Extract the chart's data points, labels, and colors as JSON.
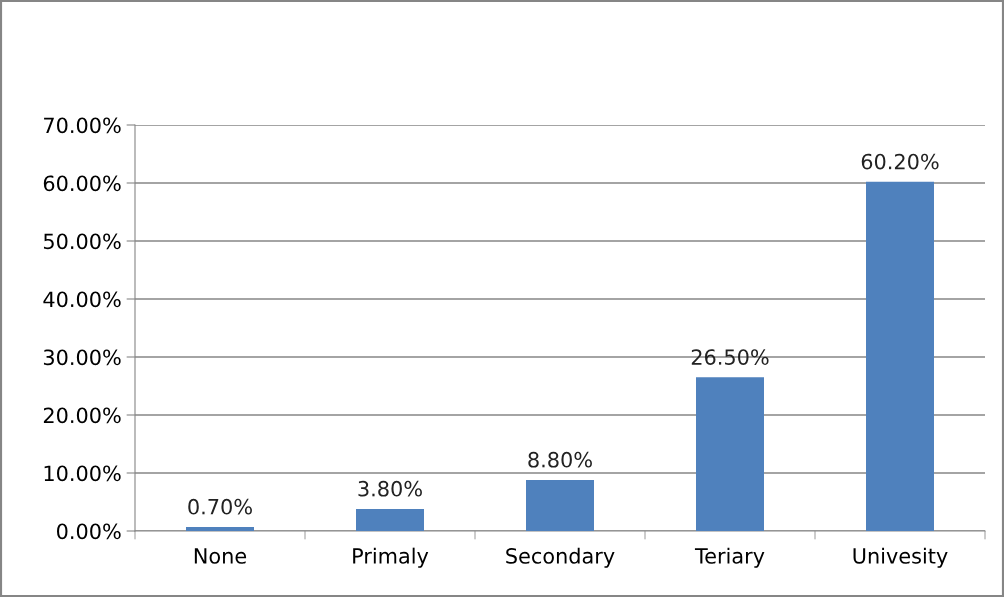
{
  "chart_data": {
    "type": "bar",
    "categories": [
      "None",
      "Primaly",
      "Secondary",
      "Teriary",
      "Univesity"
    ],
    "values": [
      0.7,
      3.8,
      8.8,
      26.5,
      60.2
    ],
    "value_labels": [
      "0.70%",
      "3.80%",
      "8.80%",
      "26.50%",
      "60.20%"
    ],
    "color": "#4f81bd",
    "ylim": [
      0,
      70
    ],
    "yticks": [
      {
        "value": 0,
        "label": "0.00%"
      },
      {
        "value": 10,
        "label": "10.00%"
      },
      {
        "value": 20,
        "label": "20.00%"
      },
      {
        "value": 30,
        "label": "30.00%"
      },
      {
        "value": 40,
        "label": "40.00%"
      },
      {
        "value": 50,
        "label": "50.00%"
      },
      {
        "value": 60,
        "label": "60.00%"
      },
      {
        "value": 70,
        "label": "70.00%"
      }
    ],
    "grid": "y",
    "legend": false
  }
}
